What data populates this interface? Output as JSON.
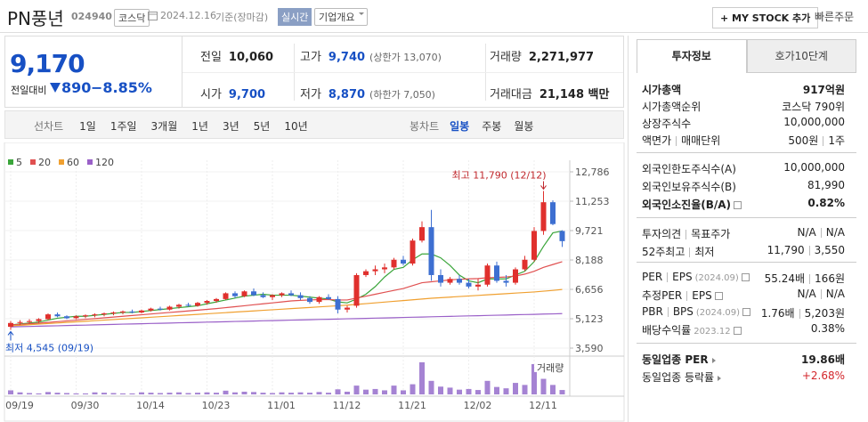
{
  "header": {
    "name": "PN풍년",
    "code": "024940",
    "market": "코스닥",
    "date": "2024.12.16",
    "basis": "기준(장마감)",
    "realtime": "실시간",
    "company": "기업개요",
    "mystock": "+ MY STOCK 추가",
    "quick_order": "빠른주문"
  },
  "quote": {
    "price": "9,170",
    "change_label": "전일대비",
    "change": "890",
    "change_rate": "−8.85%",
    "cells": [
      {
        "label": "전일",
        "value": "10,060"
      },
      {
        "label": "고가",
        "value": "9,740",
        "note": "(상한가 13,070)"
      },
      {
        "label": "거래량",
        "value": "2,271,977"
      },
      {
        "label": "시가",
        "value": "9,700"
      },
      {
        "label": "저가",
        "value": "8,870",
        "note": "(하한가 7,050)"
      },
      {
        "label": "거래대금",
        "value": "21,148 백만"
      }
    ]
  },
  "periods": {
    "line_label": "선차트",
    "line_items": [
      "1일",
      "1주일",
      "3개월",
      "1년",
      "3년",
      "5년",
      "10년"
    ],
    "candle_label": "봉차트",
    "candle_items": [
      "일봉",
      "주봉",
      "월봉"
    ],
    "active": "일봉"
  },
  "chart_data": {
    "type": "candlestick",
    "categories": [
      "09/19",
      null,
      null,
      null,
      null,
      null,
      null,
      "09/30",
      null,
      null,
      null,
      null,
      null,
      null,
      "10/14",
      null,
      null,
      null,
      null,
      null,
      null,
      "10/23",
      null,
      null,
      null,
      null,
      null,
      null,
      "11/01",
      null,
      null,
      null,
      null,
      null,
      null,
      "11/12",
      null,
      null,
      null,
      null,
      null,
      null,
      "11/21",
      null,
      null,
      null,
      null,
      null,
      null,
      "12/02",
      null,
      null,
      null,
      null,
      null,
      null,
      "12/11",
      null,
      null,
      null
    ],
    "open": [
      4700,
      4900,
      4950,
      5000,
      5100,
      5350,
      5250,
      5150,
      5250,
      5300,
      5350,
      5400,
      5450,
      5500,
      5450,
      5550,
      5650,
      5600,
      5750,
      5850,
      5800,
      5950,
      6050,
      6150,
      6450,
      6300,
      6550,
      6350,
      6250,
      6350,
      6450,
      6350,
      6200,
      6000,
      6250,
      6150,
      5600,
      5800,
      7400,
      7600,
      7700,
      7800,
      8200,
      8000,
      9200,
      9900,
      7400,
      7000,
      7200,
      7000,
      6800,
      6900,
      7900,
      7100,
      7000,
      7700,
      8200,
      9700,
      11200,
      9700
    ],
    "high": [
      5000,
      5050,
      5100,
      5150,
      5400,
      5450,
      5300,
      5300,
      5350,
      5400,
      5450,
      5500,
      5550,
      5600,
      5600,
      5700,
      5750,
      5800,
      5900,
      5950,
      6000,
      6100,
      6200,
      6500,
      6550,
      6600,
      6700,
      6500,
      6400,
      6500,
      6600,
      6500,
      6300,
      6300,
      6400,
      6300,
      5800,
      7500,
      7700,
      7900,
      8000,
      8300,
      8400,
      9300,
      10200,
      10800,
      7700,
      7300,
      7400,
      7200,
      7200,
      8000,
      8100,
      7400,
      7800,
      8400,
      9900,
      11790,
      11300,
      9740
    ],
    "low": [
      4545,
      4800,
      4850,
      4900,
      5050,
      5200,
      5100,
      5100,
      5150,
      5200,
      5250,
      5300,
      5350,
      5400,
      5400,
      5500,
      5550,
      5550,
      5650,
      5750,
      5750,
      5850,
      5950,
      6100,
      6200,
      6250,
      6300,
      6200,
      6100,
      6250,
      6300,
      6100,
      5900,
      5900,
      6100,
      5400,
      5450,
      5700,
      7300,
      7400,
      7500,
      7700,
      7900,
      7900,
      9100,
      7100,
      6800,
      6900,
      6900,
      6700,
      6600,
      6800,
      7000,
      6800,
      6900,
      7600,
      8100,
      9500,
      10000,
      8870
    ],
    "close": [
      4900,
      4950,
      5000,
      5100,
      5350,
      5250,
      5150,
      5250,
      5300,
      5350,
      5400,
      5450,
      5500,
      5450,
      5550,
      5650,
      5600,
      5750,
      5850,
      5800,
      5950,
      6050,
      6150,
      6450,
      6300,
      6550,
      6350,
      6250,
      6350,
      6450,
      6350,
      6200,
      6000,
      6250,
      6150,
      5600,
      5700,
      7400,
      7600,
      7700,
      7800,
      8200,
      8000,
      9200,
      9900,
      7400,
      7000,
      7200,
      7000,
      6800,
      6900,
      7900,
      7100,
      7000,
      7700,
      8200,
      9700,
      11200,
      10060,
      9170
    ],
    "up_color": "#e0302d",
    "down_color": "#3d6fd1",
    "ma": [
      {
        "name": "5",
        "color": "#3aa53a",
        "values": [
          4800,
          4850,
          4900,
          4950,
          5050,
          5150,
          5200,
          5250,
          5250,
          5300,
          5350,
          5400,
          5450,
          5450,
          5500,
          5550,
          5600,
          5650,
          5700,
          5750,
          5800,
          5900,
          6000,
          6100,
          6200,
          6300,
          6350,
          6400,
          6350,
          6350,
          6350,
          6300,
          6250,
          6200,
          6150,
          6000,
          5950,
          6150,
          6400,
          6800,
          7300,
          7700,
          7800,
          8200,
          8500,
          8500,
          8300,
          7900,
          7400,
          7100,
          7000,
          7200,
          7200,
          7200,
          7400,
          7600,
          8100,
          8900,
          9600,
          9700
        ]
      },
      {
        "name": "20",
        "color": "#e05050",
        "values": [
          4800,
          4830,
          4860,
          4890,
          4930,
          4970,
          5010,
          5050,
          5090,
          5130,
          5170,
          5210,
          5250,
          5290,
          5330,
          5370,
          5410,
          5450,
          5490,
          5530,
          5570,
          5610,
          5650,
          5700,
          5750,
          5800,
          5850,
          5900,
          5950,
          6000,
          6050,
          6080,
          6100,
          6120,
          6120,
          6100,
          6100,
          6200,
          6300,
          6400,
          6500,
          6600,
          6700,
          6850,
          7000,
          7050,
          7100,
          7150,
          7180,
          7200,
          7220,
          7260,
          7280,
          7300,
          7350,
          7450,
          7600,
          7800,
          7950,
          8100
        ]
      },
      {
        "name": "60",
        "color": "#f0a030",
        "values": [
          4750,
          4780,
          4810,
          4840,
          4870,
          4900,
          4930,
          4960,
          4990,
          5020,
          5050,
          5080,
          5110,
          5140,
          5170,
          5200,
          5230,
          5260,
          5290,
          5320,
          5350,
          5380,
          5410,
          5440,
          5470,
          5500,
          5530,
          5560,
          5590,
          5620,
          5650,
          5680,
          5710,
          5740,
          5770,
          5800,
          5830,
          5870,
          5910,
          5950,
          5990,
          6030,
          6070,
          6110,
          6150,
          6190,
          6220,
          6250,
          6280,
          6310,
          6340,
          6370,
          6400,
          6430,
          6460,
          6490,
          6520,
          6560,
          6600,
          6650
        ]
      },
      {
        "name": "120",
        "color": "#9a60c8",
        "values": [
          4700,
          4710,
          4720,
          4735,
          4745,
          4755,
          4770,
          4780,
          4790,
          4805,
          4815,
          4825,
          4840,
          4850,
          4860,
          4875,
          4885,
          4895,
          4910,
          4920,
          4930,
          4945,
          4955,
          4965,
          4980,
          4990,
          5000,
          5015,
          5025,
          5035,
          5050,
          5060,
          5070,
          5085,
          5095,
          5105,
          5120,
          5130,
          5140,
          5155,
          5165,
          5175,
          5190,
          5200,
          5210,
          5225,
          5235,
          5245,
          5260,
          5270,
          5280,
          5295,
          5305,
          5315,
          5330,
          5340,
          5350,
          5365,
          5375,
          5390
        ]
      }
    ],
    "ylim": [
      3590,
      12786
    ],
    "yticks": [
      {
        "value": 12786,
        "label": "12,786"
      },
      {
        "value": 11253,
        "label": "11,253"
      },
      {
        "value": 9721,
        "label": "9,721"
      },
      {
        "value": 8188,
        "label": "8,188"
      },
      {
        "value": 6656,
        "label": "6,656"
      },
      {
        "value": 5123,
        "label": "5,123"
      },
      {
        "value": 3590,
        "label": "3,590"
      }
    ],
    "volume": {
      "name": "거래량",
      "color": "#a583d3",
      "ylim": [
        0,
        1000
      ],
      "values": [
        120,
        60,
        40,
        30,
        70,
        50,
        40,
        30,
        30,
        60,
        50,
        40,
        30,
        30,
        60,
        50,
        40,
        50,
        60,
        40,
        50,
        60,
        50,
        110,
        60,
        80,
        70,
        50,
        40,
        60,
        50,
        60,
        50,
        70,
        50,
        150,
        80,
        260,
        140,
        160,
        120,
        260,
        120,
        300,
        950,
        400,
        230,
        200,
        140,
        160,
        130,
        400,
        220,
        180,
        340,
        280,
        660,
        460,
        280,
        130
      ]
    },
    "annotations": [
      {
        "text": "최고 11,790 (12/12)",
        "index": 57,
        "value": 11790
      },
      {
        "text": "최저 4,545 (09/19)",
        "index": 0,
        "value": 4545
      }
    ]
  },
  "invest_info": {
    "tabs": [
      "투자정보",
      "호가10단계"
    ],
    "groups": [
      [
        {
          "labels": [
            "시가총액"
          ],
          "values": [
            "917억원"
          ],
          "bold": true
        },
        {
          "labels": [
            "시가총액순위"
          ],
          "values": [
            "코스닥 790위"
          ]
        },
        {
          "labels": [
            "상장주식수"
          ],
          "values": [
            "10,000,000"
          ]
        },
        {
          "labels": [
            "액면가",
            "매매단위"
          ],
          "values": [
            "500원",
            "1주"
          ]
        }
      ],
      [
        {
          "labels": [
            "외국인한도주식수(A)"
          ],
          "values": [
            "10,000,000"
          ]
        },
        {
          "labels": [
            "외국인보유주식수(B)"
          ],
          "values": [
            "81,990"
          ]
        },
        {
          "labels": [
            "외국인소진율(B/A)"
          ],
          "values": [
            "0.82%"
          ],
          "bold": true,
          "help": true
        }
      ],
      [
        {
          "labels": [
            "투자의견",
            "목표주가"
          ],
          "values": [
            "N/A",
            "N/A"
          ]
        },
        {
          "labels": [
            "52주최고",
            "최저"
          ],
          "values": [
            "11,790",
            "3,550"
          ]
        }
      ],
      [
        {
          "labels": [
            "PER",
            "EPS"
          ],
          "note": "(2024.09)",
          "values": [
            "55.24배",
            "166원"
          ],
          "help": true
        },
        {
          "labels": [
            "추정PER",
            "EPS"
          ],
          "values": [
            "N/A",
            "N/A"
          ],
          "help": true
        },
        {
          "labels": [
            "PBR",
            "BPS"
          ],
          "note": "(2024.09)",
          "values": [
            "1.76배",
            "5,203원"
          ],
          "help": true
        },
        {
          "labels": [
            "배당수익률"
          ],
          "note": "2023.12",
          "values": [
            "0.38%"
          ],
          "help": true
        }
      ],
      [
        {
          "labels": [
            "동일업종 PER"
          ],
          "values": [
            "19.86배"
          ],
          "bold": true,
          "arrow": true
        },
        {
          "labels": [
            "동일업종 등락률"
          ],
          "values": [
            "+2.68%"
          ],
          "arrow": true,
          "red": true
        }
      ]
    ]
  }
}
